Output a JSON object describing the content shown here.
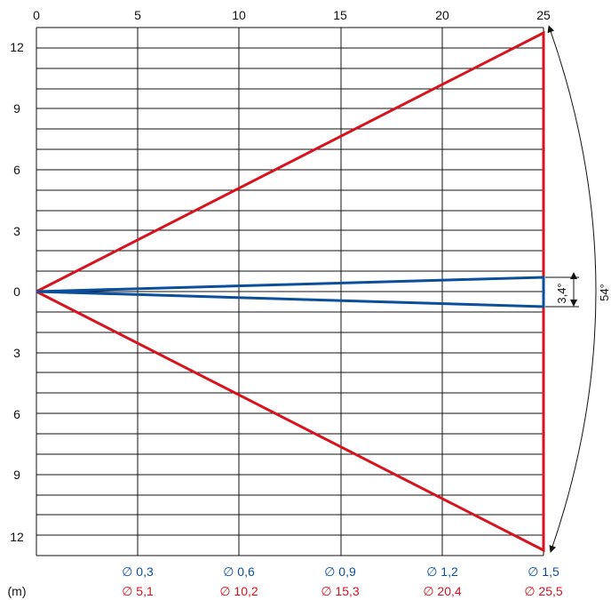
{
  "colors": {
    "wide_beam": "#d7141e",
    "narrow_beam": "#0b4f9c",
    "grid": "#111111"
  },
  "x_ticks": [
    "0",
    "5",
    "10",
    "15",
    "20",
    "25"
  ],
  "y_ticks": [
    "12",
    "9",
    "6",
    "3",
    "0",
    "3",
    "6",
    "9",
    "12"
  ],
  "unit_label": "(m)",
  "diameter_narrow": [
    "∅ 0,3",
    "∅ 0,6",
    "∅ 0,9",
    "∅ 1,2",
    "∅ 1,5"
  ],
  "diameter_wide": [
    "∅ 5,1",
    "∅ 10,2",
    "∅ 15,3",
    "∅ 20,4",
    "∅ 25,5"
  ],
  "narrow_angle_label": "3,4°",
  "wide_angle_label": "54°",
  "beams": {
    "distance_m": 25,
    "wide_half_width_m": 12.75,
    "narrow_half_width_m": 0.75
  }
}
